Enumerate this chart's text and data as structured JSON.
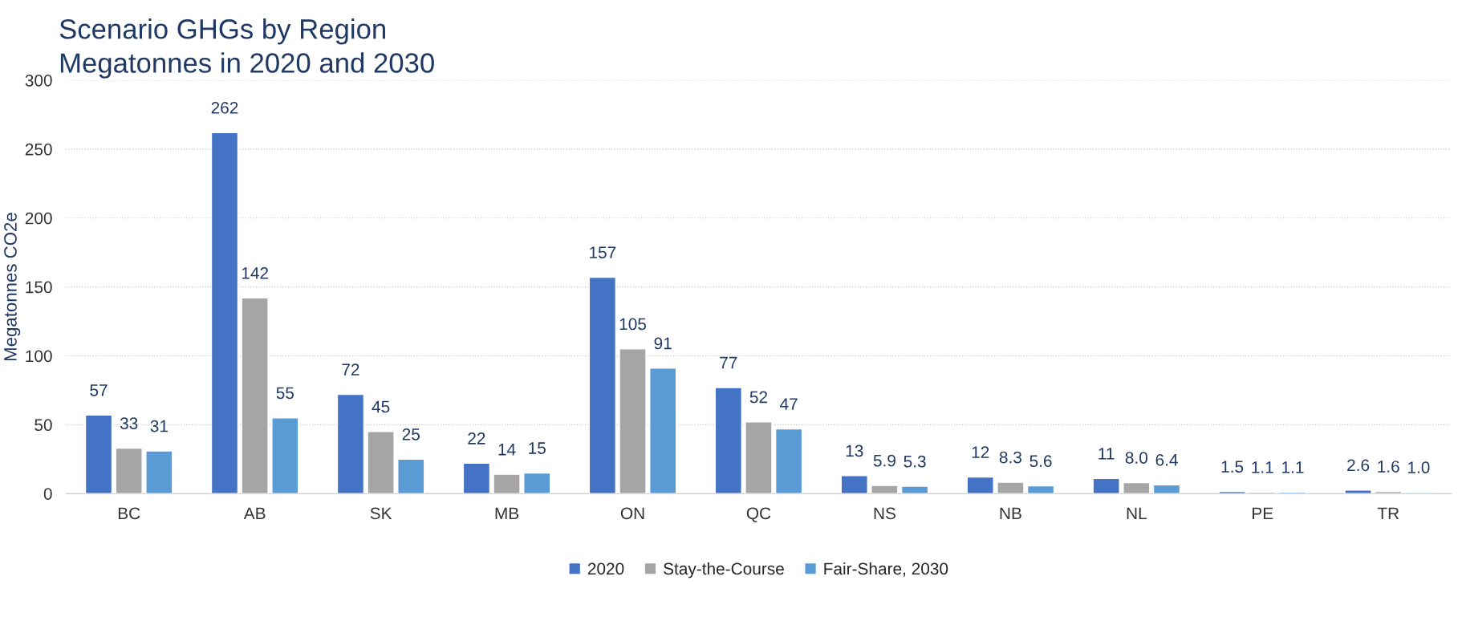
{
  "chart_data": {
    "type": "bar",
    "title": "Scenario GHGs by Region",
    "subtitle": "Megatonnes in 2020 and 2030",
    "ylabel": "Megatonnes CO2e",
    "categories": [
      "BC",
      "AB",
      "SK",
      "MB",
      "ON",
      "QC",
      "NS",
      "NB",
      "NL",
      "PE",
      "TR"
    ],
    "series": [
      {
        "name": "2020",
        "color": "#4472c4",
        "values": [
          57,
          262,
          72,
          22,
          157,
          77,
          13,
          12,
          11,
          1.5,
          2.6
        ],
        "value_labels": [
          "57",
          "262",
          "72",
          "22",
          "157",
          "77",
          "13",
          "12",
          "11",
          "1.5",
          "2.6"
        ]
      },
      {
        "name": "Stay-the-Course",
        "color": "#a5a5a5",
        "values": [
          33,
          142,
          45,
          14,
          105,
          52,
          5.9,
          8.3,
          8.0,
          1.1,
          1.6
        ],
        "value_labels": [
          "33",
          "142",
          "45",
          "14",
          "105",
          "52",
          "5.9",
          "8.3",
          "8.0",
          "1.1",
          "1.6"
        ]
      },
      {
        "name": "Fair-Share, 2030",
        "color": "#5b9bd5",
        "values": [
          31,
          55,
          25,
          15,
          91,
          47,
          5.3,
          5.6,
          6.4,
          1.1,
          1.0
        ],
        "value_labels": [
          "31",
          "55",
          "25",
          "15",
          "91",
          "47",
          "5.3",
          "5.6",
          "6.4",
          "1.1",
          "1.0"
        ]
      }
    ],
    "ylim": [
      0,
      300
    ],
    "yticks": [
      0,
      50,
      100,
      150,
      200,
      250,
      300
    ],
    "grid": "y",
    "legend": "bottom"
  }
}
